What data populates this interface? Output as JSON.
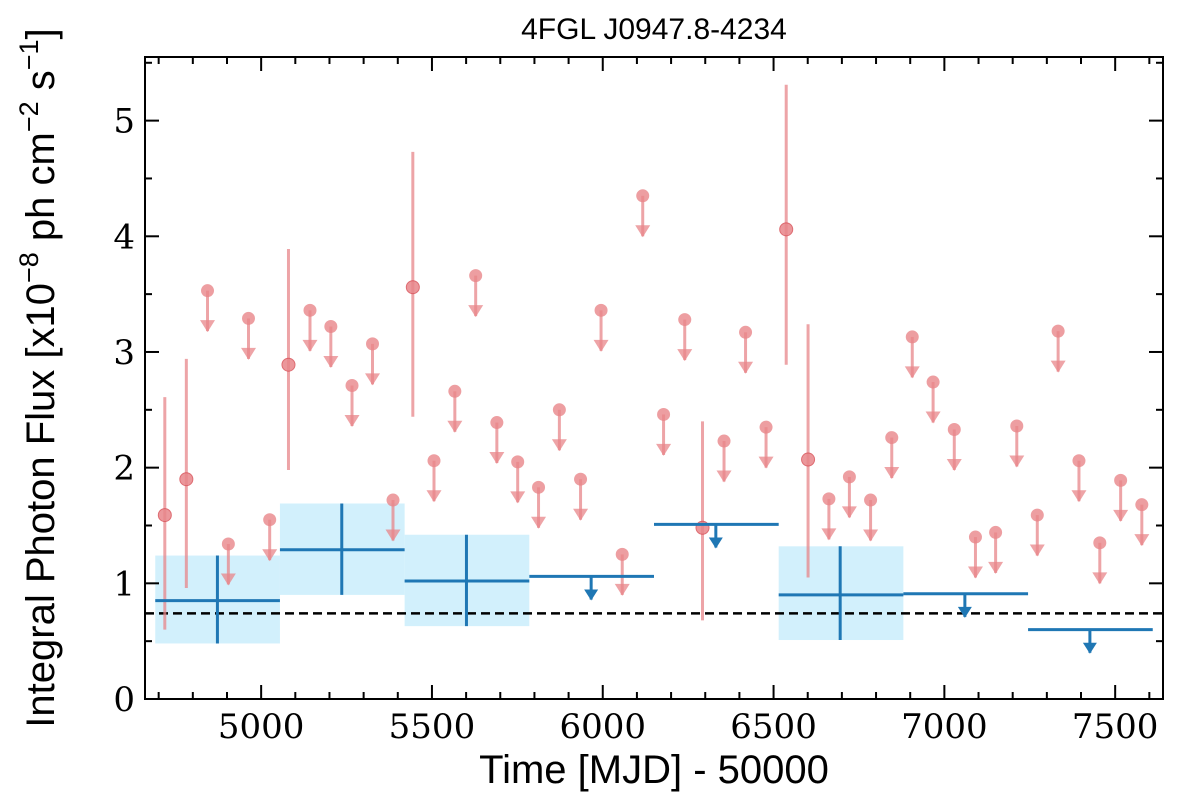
{
  "chart_data": {
    "type": "scatter",
    "title": "4FGL J0947.8-4234",
    "xlabel": "Time [MJD] - 50000",
    "ylabel_parts": [
      "Integral Photon Flux [x10",
      "−8",
      " ph cm",
      "−2",
      " s",
      "−1",
      "]"
    ],
    "xlim": [
      4660,
      7640
    ],
    "ylim": [
      0,
      5.55
    ],
    "x_ticks": [
      5000,
      5500,
      6000,
      6500,
      7000,
      7500
    ],
    "x_tick_labels": [
      "5000",
      "5500",
      "6000",
      "6500",
      "7000",
      "7500"
    ],
    "y_ticks": [
      0,
      1,
      2,
      3,
      4,
      5
    ],
    "y_tick_labels": [
      "0",
      "1",
      "2",
      "3",
      "4",
      "5"
    ],
    "grid": false,
    "reference_line": {
      "y": 0.74,
      "style": "dashed",
      "color": "#000000"
    },
    "colors": {
      "monthly": "#e8868a",
      "yearly": "#1f77b4",
      "yearly_band": "#cdeefc"
    },
    "series": [
      {
        "key": "monthly_detections",
        "points": [
          {
            "x": 4718,
            "y": 1.59,
            "ylo": 0.6,
            "yhi": 2.61
          },
          {
            "x": 4781,
            "y": 1.9,
            "ylo": 0.96,
            "yhi": 2.94
          },
          {
            "x": 5080,
            "y": 2.89,
            "ylo": 1.98,
            "yhi": 3.89
          },
          {
            "x": 5444,
            "y": 3.56,
            "ylo": 2.44,
            "yhi": 4.73
          },
          {
            "x": 6292,
            "y": 1.48,
            "ylo": 0.68,
            "yhi": 2.4
          },
          {
            "x": 6537,
            "y": 4.06,
            "ylo": 2.89,
            "yhi": 5.31
          },
          {
            "x": 6601,
            "y": 2.07,
            "ylo": 1.05,
            "yhi": 3.24
          }
        ]
      },
      {
        "key": "monthly_upper_limits",
        "points": [
          {
            "x": 4843,
            "y": 3.53
          },
          {
            "x": 4904,
            "y": 1.34
          },
          {
            "x": 4963,
            "y": 3.29
          },
          {
            "x": 5025,
            "y": 1.55
          },
          {
            "x": 5143,
            "y": 3.36
          },
          {
            "x": 5204,
            "y": 3.22
          },
          {
            "x": 5266,
            "y": 2.71
          },
          {
            "x": 5326,
            "y": 3.07
          },
          {
            "x": 5386,
            "y": 1.72
          },
          {
            "x": 5506,
            "y": 2.06
          },
          {
            "x": 5567,
            "y": 2.66
          },
          {
            "x": 5628,
            "y": 3.66
          },
          {
            "x": 5690,
            "y": 2.39
          },
          {
            "x": 5751,
            "y": 2.05
          },
          {
            "x": 5812,
            "y": 1.83
          },
          {
            "x": 5873,
            "y": 2.5
          },
          {
            "x": 5935,
            "y": 1.9
          },
          {
            "x": 5995,
            "y": 3.36
          },
          {
            "x": 6057,
            "y": 1.25
          },
          {
            "x": 6117,
            "y": 4.35
          },
          {
            "x": 6178,
            "y": 2.46
          },
          {
            "x": 6240,
            "y": 3.28
          },
          {
            "x": 6355,
            "y": 2.23
          },
          {
            "x": 6418,
            "y": 3.17
          },
          {
            "x": 6478,
            "y": 2.35
          },
          {
            "x": 6662,
            "y": 1.73
          },
          {
            "x": 6722,
            "y": 1.92
          },
          {
            "x": 6784,
            "y": 1.72
          },
          {
            "x": 6846,
            "y": 2.26
          },
          {
            "x": 6906,
            "y": 3.13
          },
          {
            "x": 6967,
            "y": 2.74
          },
          {
            "x": 7029,
            "y": 2.33
          },
          {
            "x": 7091,
            "y": 1.4
          },
          {
            "x": 7150,
            "y": 1.44
          },
          {
            "x": 7212,
            "y": 2.36
          },
          {
            "x": 7272,
            "y": 1.59
          },
          {
            "x": 7333,
            "y": 3.18
          },
          {
            "x": 7394,
            "y": 2.06
          },
          {
            "x": 7455,
            "y": 1.35
          },
          {
            "x": 7516,
            "y": 1.89
          },
          {
            "x": 7578,
            "y": 1.68
          }
        ]
      },
      {
        "key": "yearly_detections",
        "points": [
          {
            "x": 4872,
            "xlo": 4690,
            "xhi": 5055,
            "y": 0.85,
            "ylo": 0.48,
            "yhi": 1.24
          },
          {
            "x": 5236,
            "xlo": 5055,
            "xhi": 5420,
            "y": 1.29,
            "ylo": 0.9,
            "yhi": 1.69
          },
          {
            "x": 5601,
            "xlo": 5420,
            "xhi": 5785,
            "y": 1.02,
            "ylo": 0.63,
            "yhi": 1.42
          },
          {
            "x": 6695,
            "xlo": 6515,
            "xhi": 6880,
            "y": 0.9,
            "ylo": 0.51,
            "yhi": 1.32
          }
        ]
      },
      {
        "key": "yearly_upper_limits",
        "points": [
          {
            "x": 5966,
            "xlo": 5785,
            "xhi": 6150,
            "y": 1.06
          },
          {
            "x": 6331,
            "xlo": 6150,
            "xhi": 6515,
            "y": 1.51
          },
          {
            "x": 7060,
            "xlo": 6880,
            "xhi": 7245,
            "y": 0.91
          },
          {
            "x": 7426,
            "xlo": 7245,
            "xhi": 7610,
            "y": 0.6
          }
        ]
      }
    ]
  }
}
